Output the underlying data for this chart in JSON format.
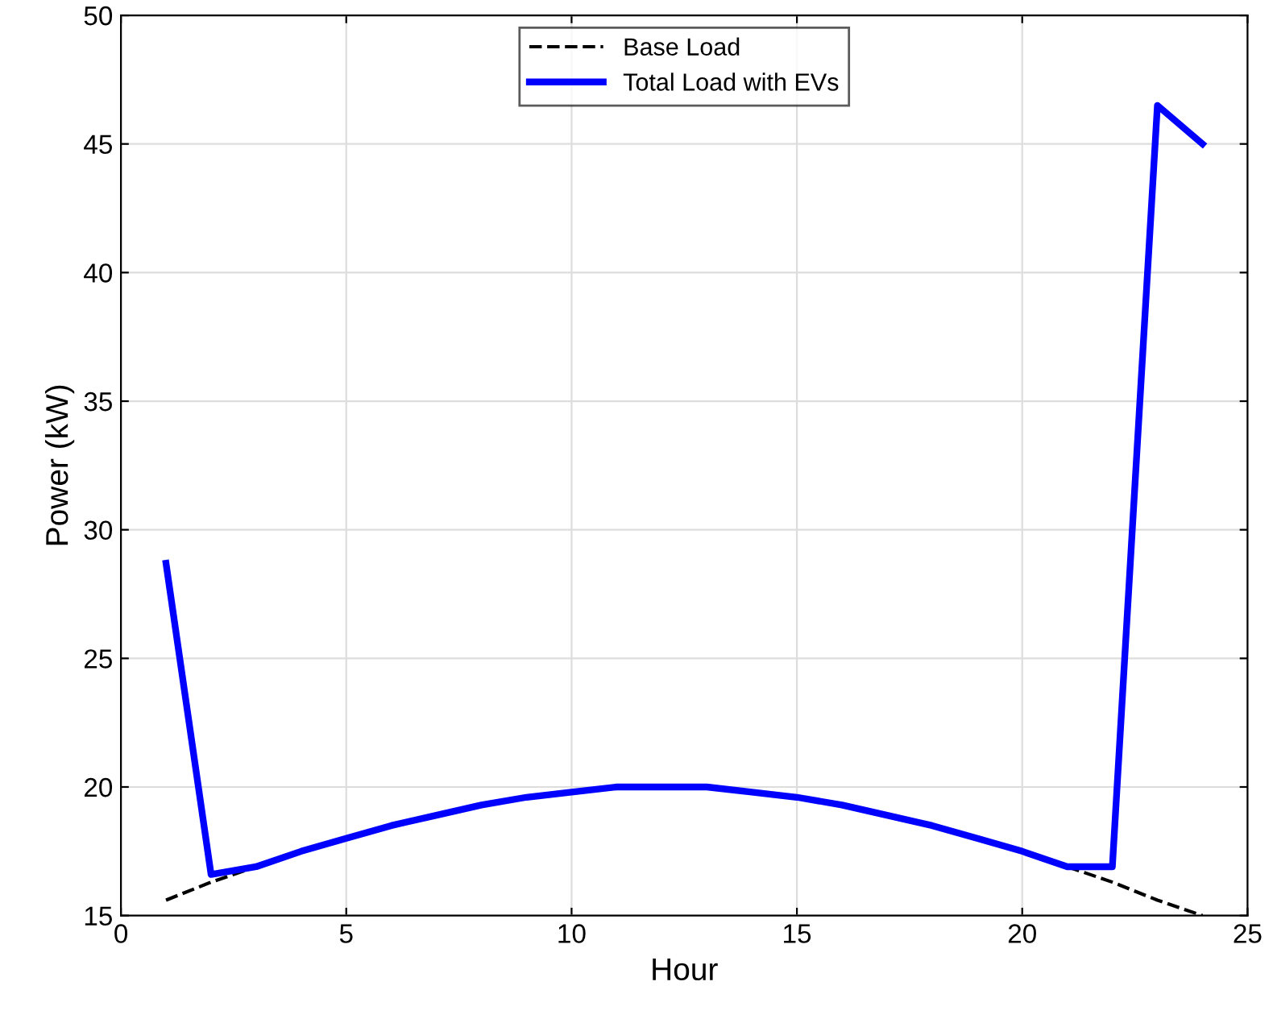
{
  "chart_data": {
    "type": "line",
    "xlabel": "Hour",
    "ylabel": "Power (kW)",
    "x": [
      1,
      2,
      3,
      4,
      5,
      6,
      7,
      8,
      9,
      10,
      11,
      12,
      13,
      14,
      15,
      16,
      17,
      18,
      19,
      20,
      21,
      22,
      23,
      24
    ],
    "series": [
      {
        "name": "Base Load",
        "color": "#000000",
        "line_style": "dashed",
        "values": [
          15.6,
          16.3,
          16.9,
          null,
          null,
          null,
          null,
          null,
          null,
          null,
          null,
          null,
          null,
          null,
          null,
          null,
          null,
          null,
          null,
          null,
          16.9,
          16.3,
          15.6,
          15.0
        ]
      },
      {
        "name": "Total Load with EVs",
        "color": "#0000ff",
        "line_style": "solid",
        "values": [
          28.7,
          16.6,
          16.9,
          17.5,
          18.0,
          18.5,
          18.9,
          19.3,
          19.6,
          19.8,
          20.0,
          20.0,
          20.0,
          19.8,
          19.6,
          19.3,
          18.9,
          18.5,
          18.0,
          17.5,
          16.9,
          16.9,
          46.5,
          45.0
        ]
      }
    ],
    "xlim": [
      0,
      25
    ],
    "xticks": [
      0,
      5,
      10,
      15,
      20,
      25
    ],
    "ylim": [
      15,
      50
    ],
    "yticks": [
      15,
      20,
      25,
      30,
      35,
      40,
      45,
      50
    ],
    "grid": true,
    "legend": "top"
  }
}
